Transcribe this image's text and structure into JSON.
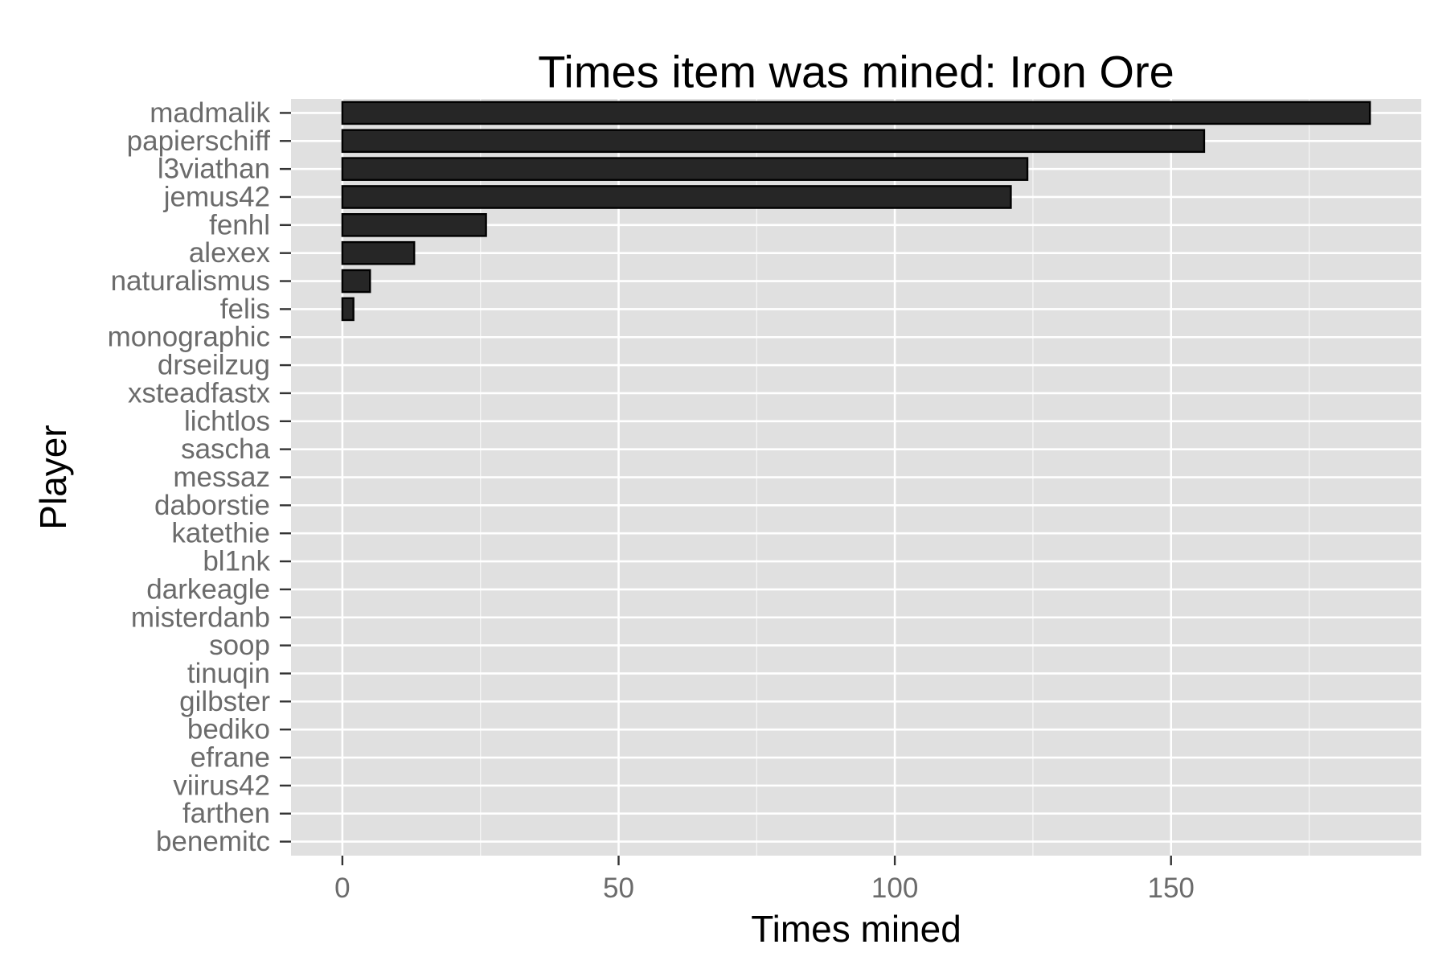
{
  "chart_data": {
    "type": "bar",
    "orientation": "horizontal",
    "title": "Times item was mined: Iron Ore",
    "xlabel": "Times mined",
    "ylabel": "Player",
    "categories": [
      "madmalik",
      "papierschiff",
      "l3viathan",
      "jemus42",
      "fenhl",
      "alexex",
      "naturalismus",
      "felis",
      "monographic",
      "drseilzug",
      "xsteadfastx",
      "lichtlos",
      "sascha",
      "messaz",
      "daborstie",
      "katethie",
      "bl1nk",
      "darkeagle",
      "misterdanb",
      "soop",
      "tinuqin",
      "gilbster",
      "bediko",
      "efrane",
      "viirus42",
      "farthen",
      "benemitc"
    ],
    "values": [
      186,
      156,
      124,
      121,
      26,
      13,
      5,
      2,
      0,
      0,
      0,
      0,
      0,
      0,
      0,
      0,
      0,
      0,
      0,
      0,
      0,
      0,
      0,
      0,
      0,
      0,
      0
    ],
    "xlim": [
      -9.3,
      195.3
    ],
    "xticks": [
      0,
      50,
      100,
      150
    ],
    "xtick_labels": [
      "0",
      "50",
      "100",
      "150"
    ],
    "grid": true,
    "legend": "none",
    "colors": {
      "panel_background": "#e0e0e0",
      "gridline": "#ffffff",
      "bar_fill": "#262626",
      "bar_outline": "#000000",
      "tick_text": "#6b6b6b",
      "axis_tick": "#333333"
    }
  }
}
